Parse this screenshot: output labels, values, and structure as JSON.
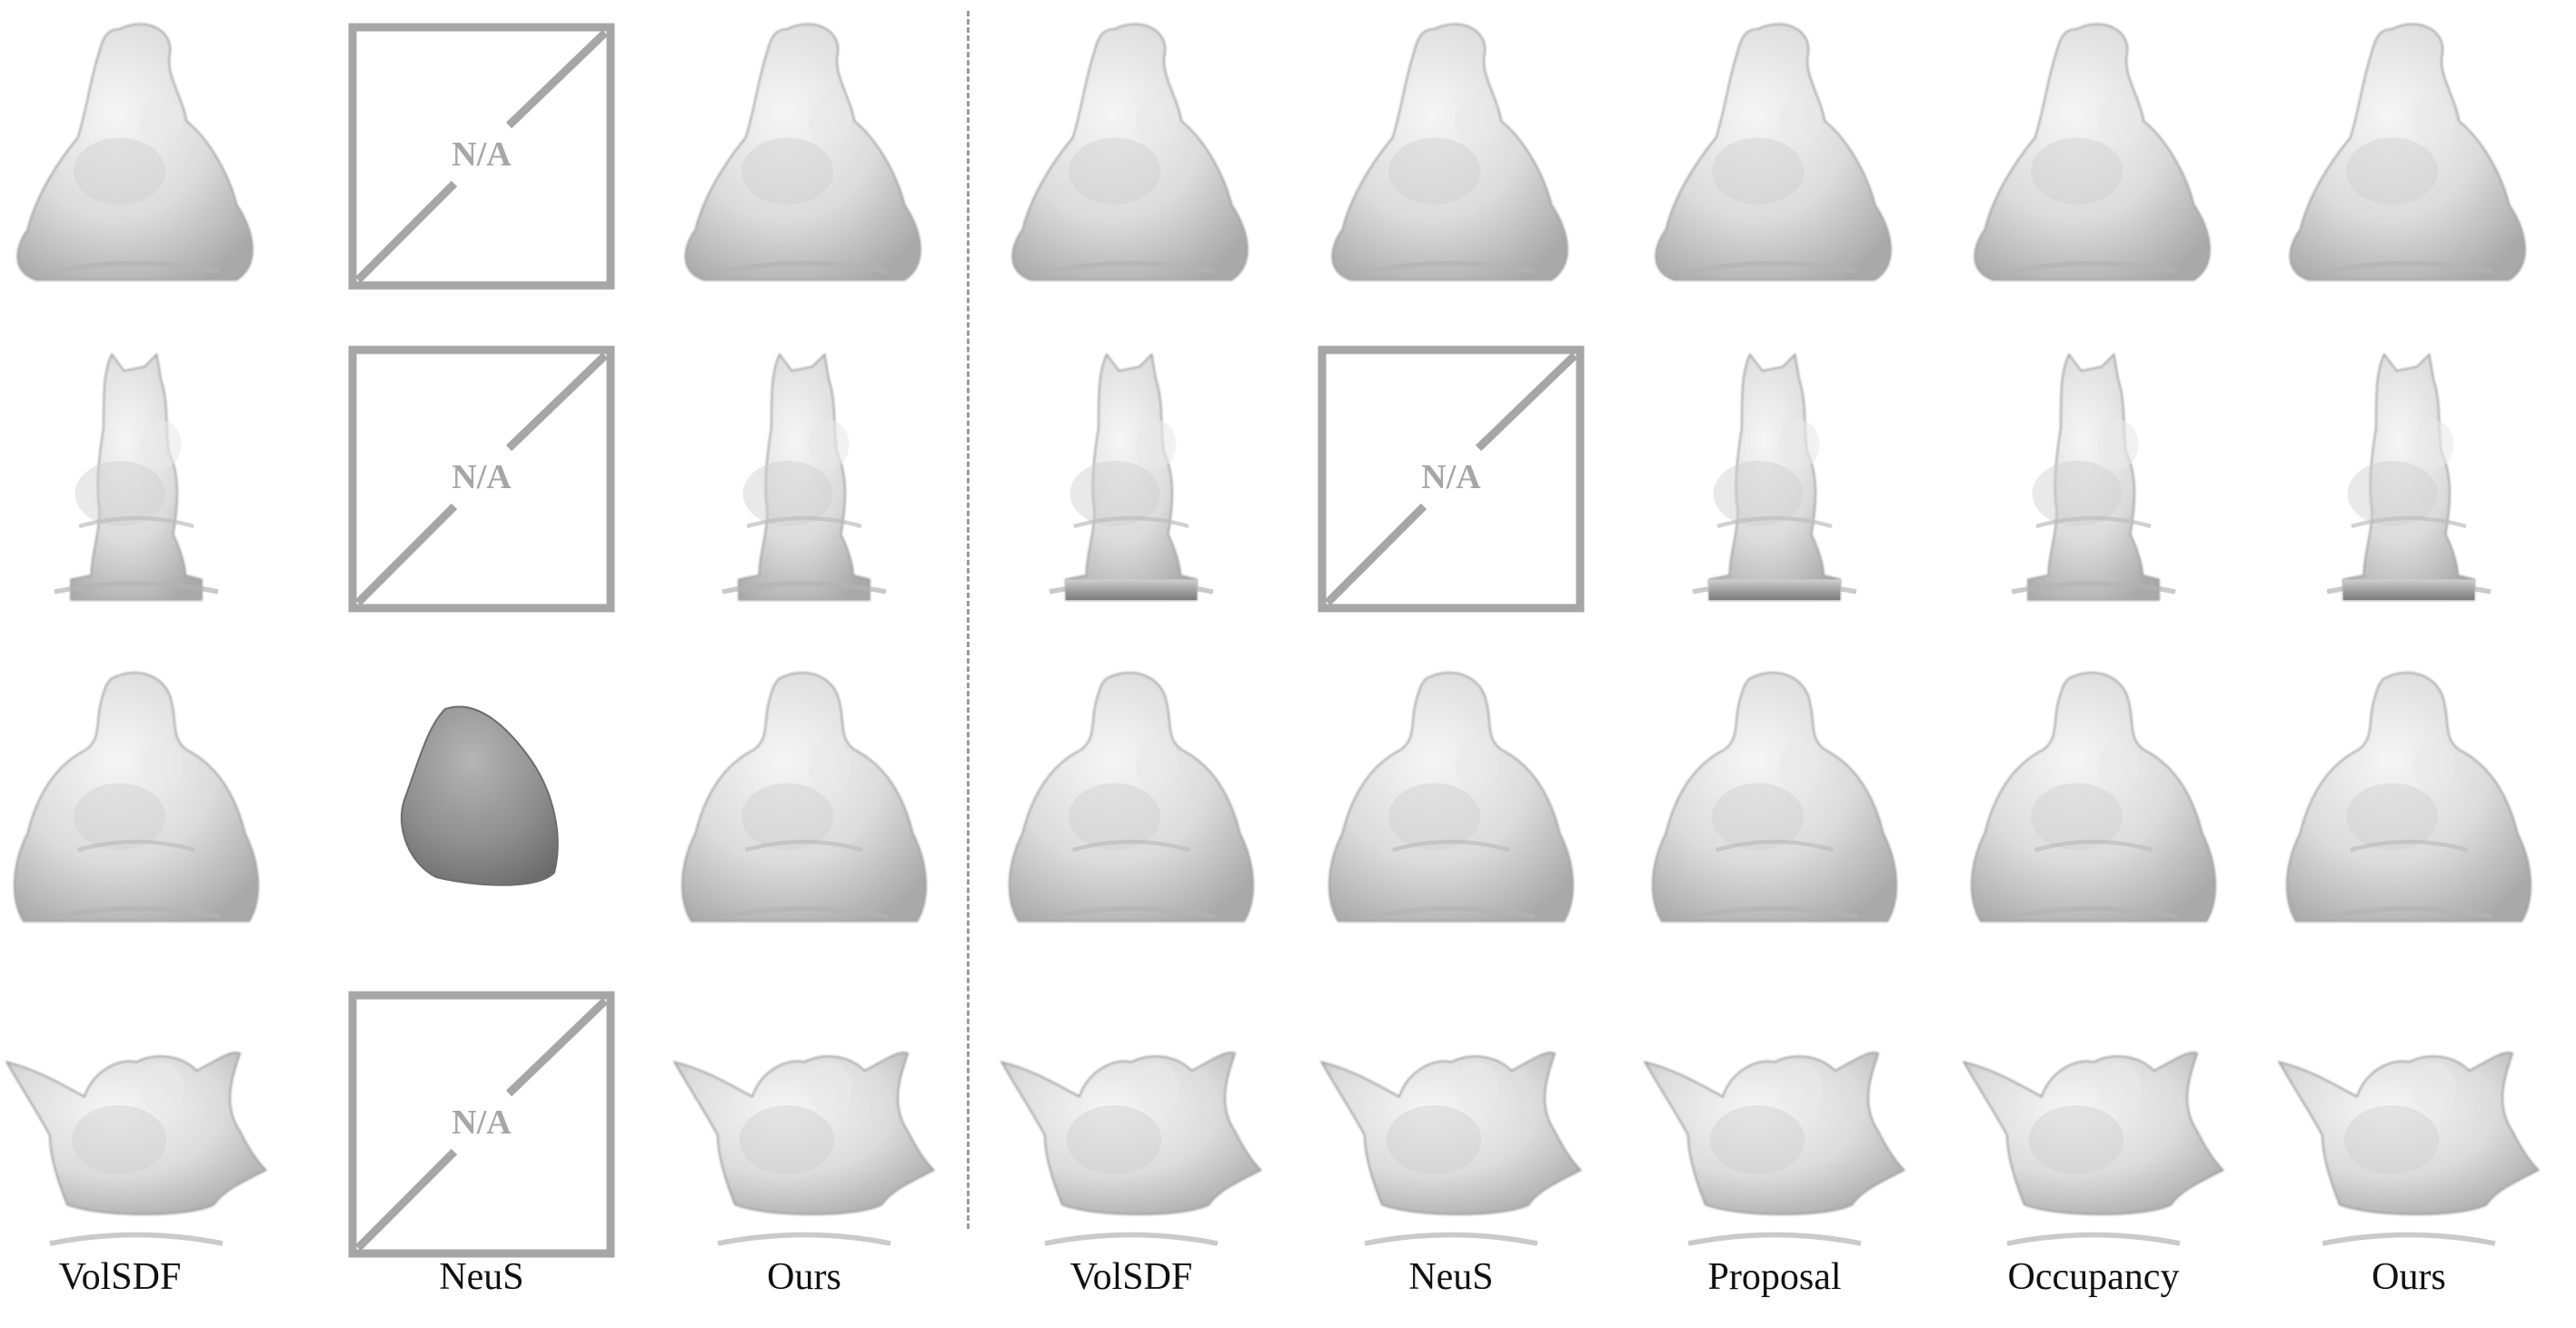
{
  "figure": {
    "left_group_labels": [
      "VolSDF",
      "NeuS",
      "Ours"
    ],
    "right_group_labels": [
      "VolSDF",
      "NeuS",
      "Proposal",
      "Occupancy",
      "Ours"
    ],
    "na_label": "N/A",
    "objects": [
      "cat",
      "owl",
      "buddha",
      "birds"
    ],
    "cells": [
      [
        "mesh",
        "na",
        "mesh",
        "mesh",
        "mesh",
        "mesh",
        "mesh",
        "mesh"
      ],
      [
        "mesh",
        "na",
        "mesh",
        "mesh",
        "na",
        "mesh",
        "mesh",
        "mesh"
      ],
      [
        "mesh",
        "blob",
        "mesh",
        "mesh",
        "mesh",
        "mesh",
        "mesh",
        "mesh"
      ],
      [
        "mesh",
        "na",
        "mesh",
        "mesh",
        "mesh",
        "mesh",
        "mesh",
        "mesh"
      ]
    ],
    "colors": {
      "background": "#ffffff",
      "mesh_light": "#efefef",
      "mesh_mid": "#c9c9c9",
      "mesh_dark": "#7d7d7d",
      "na_box": "#a6a6a6",
      "divider": "#9a9a9a",
      "label_text": "#111111"
    }
  }
}
